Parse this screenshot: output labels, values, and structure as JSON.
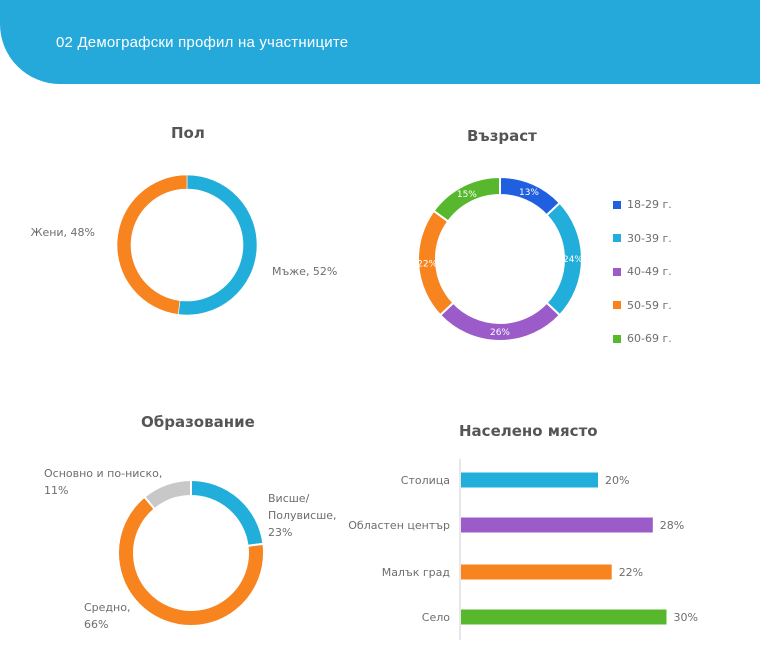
{
  "header": {
    "title": "02 Демографски профил на участниците"
  },
  "colors": {
    "header": "#25a9db"
  },
  "chart_data": [
    {
      "type": "pie",
      "title": "Пол",
      "slices": [
        {
          "label": "Мъже",
          "value": 52,
          "text": "Мъже, 52%",
          "color": "#21aedb"
        },
        {
          "label": "Жени",
          "value": 48,
          "text": "Жени, 48%",
          "color": "#f7841e"
        }
      ]
    },
    {
      "type": "pie",
      "title": "Възраст",
      "legend_position": "right",
      "slices": [
        {
          "label": "18-29 г.",
          "value": 13,
          "text": "13%",
          "color": "#1f5fe0"
        },
        {
          "label": "30-39 г.",
          "value": 24,
          "text": "24%",
          "color": "#21aedb"
        },
        {
          "label": "40-49 г.",
          "value": 26,
          "text": "26%",
          "color": "#9b5bc8"
        },
        {
          "label": "50-59 г.",
          "value": 22,
          "text": "22%",
          "color": "#f7841e"
        },
        {
          "label": "60-69 г.",
          "value": 15,
          "text": "15%",
          "color": "#57b82d"
        }
      ]
    },
    {
      "type": "pie",
      "title": "Образование",
      "slices": [
        {
          "label": "Висше/ Полувисше",
          "value": 23,
          "text_lines": [
            "Висше/",
            "Полувисше,",
            "23%"
          ],
          "color": "#21aedb"
        },
        {
          "label": "Средно",
          "value": 66,
          "text_lines": [
            "Средно,",
            "66%"
          ],
          "color": "#f7841e"
        },
        {
          "label": "Основно и по-ниско",
          "value": 11,
          "text_lines": [
            "Основно и по-ниско,",
            "11%"
          ],
          "color": "#c8c8c8"
        }
      ]
    },
    {
      "type": "bar",
      "orientation": "horizontal",
      "title": "Населено място",
      "categories": [
        "Столица",
        "Областен център",
        "Малък град",
        "Село"
      ],
      "values": [
        20,
        28,
        22,
        30
      ],
      "value_labels": [
        "20%",
        "28%",
        "22%",
        "30%"
      ],
      "colors": [
        "#21aedb",
        "#9b5bc8",
        "#f7841e",
        "#57b82d"
      ]
    }
  ]
}
